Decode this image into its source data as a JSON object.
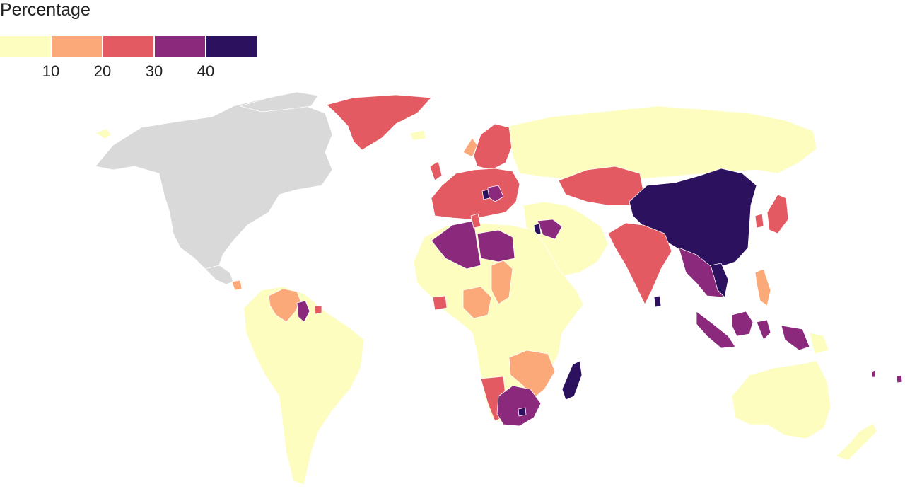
{
  "legend": {
    "title": "Percentage",
    "ticks": [
      "10",
      "20",
      "30",
      "40"
    ],
    "bins": [
      {
        "range": "0-10",
        "color": "#fcfdbf"
      },
      {
        "range": "10-20",
        "color": "#fca97a"
      },
      {
        "range": "20-30",
        "color": "#e35a63"
      },
      {
        "range": "30-40",
        "color": "#8b2a7c"
      },
      {
        "range": "40+",
        "color": "#2c115f"
      }
    ],
    "no_data_color": "#d9d9d9"
  },
  "regions": [
    {
      "name": "Greenland",
      "bin": "20-30"
    },
    {
      "name": "North America",
      "bin": "no-data"
    },
    {
      "name": "South America",
      "bin": "0-10"
    },
    {
      "name": "Venezuela",
      "bin": "10-20"
    },
    {
      "name": "Guyana",
      "bin": "30-40"
    },
    {
      "name": "Russia",
      "bin": "0-10"
    },
    {
      "name": "Kazakhstan",
      "bin": "20-30"
    },
    {
      "name": "China",
      "bin": "40+"
    },
    {
      "name": "India",
      "bin": "20-30"
    },
    {
      "name": "Japan",
      "bin": "20-30"
    },
    {
      "name": "Indonesia",
      "bin": "30-40"
    },
    {
      "name": "Philippines",
      "bin": "10-20"
    },
    {
      "name": "Australia",
      "bin": "0-10"
    },
    {
      "name": "Algeria",
      "bin": "30-40"
    },
    {
      "name": "Libya",
      "bin": "30-40"
    },
    {
      "name": "Egypt",
      "bin": "0-10"
    },
    {
      "name": "Nigeria",
      "bin": "10-20"
    },
    {
      "name": "Namibia",
      "bin": "20-30"
    },
    {
      "name": "South Africa",
      "bin": "30-40"
    },
    {
      "name": "Madagascar",
      "bin": "40+"
    },
    {
      "name": "Europe",
      "bin": "20-30"
    },
    {
      "name": "Syria",
      "bin": "40+"
    },
    {
      "name": "Sri Lanka",
      "bin": "40+"
    }
  ]
}
